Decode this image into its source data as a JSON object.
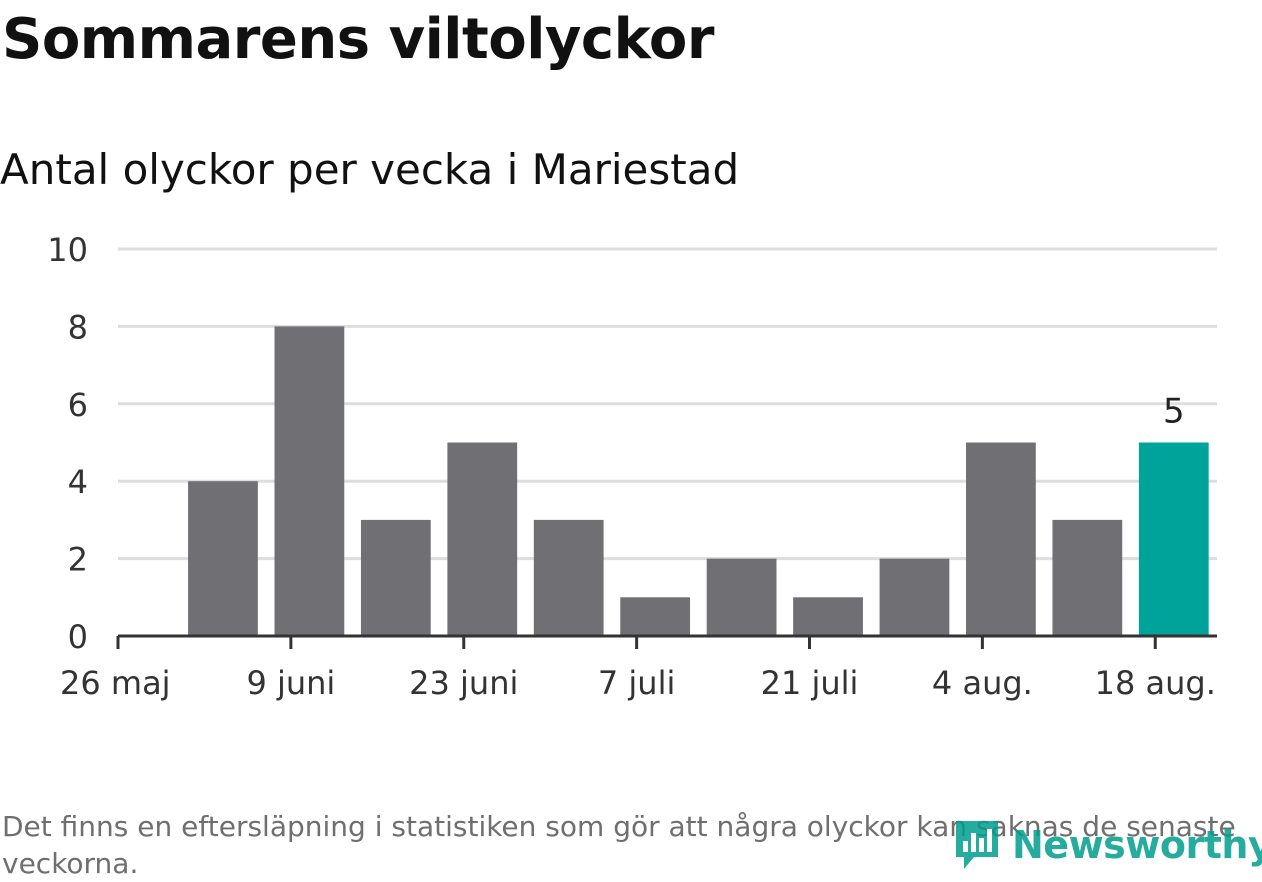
{
  "header": {
    "title": "Sommarens viltolyckor",
    "subtitle": "Antal olyckor per vecka i Mariestad"
  },
  "footer": {
    "note": "Det finns en eftersläpning i statistiken som gör att några olyckor kan saknas de senaste veckorna.",
    "brand": "Newsworthy"
  },
  "colors": {
    "bar": "#706f74",
    "highlight": "#00a39a",
    "grid": "#dddddd",
    "axis": "#333333",
    "text": "#333333",
    "brand": "#009e8e"
  },
  "chart_data": {
    "type": "bar",
    "x_axis": "date",
    "week_starts": [
      "2019-06-03",
      "2019-06-10",
      "2019-06-17",
      "2019-06-24",
      "2019-07-01",
      "2019-07-08",
      "2019-07-15",
      "2019-07-22",
      "2019-07-29",
      "2019-08-05",
      "2019-08-12",
      "2019-08-19"
    ],
    "values": [
      4,
      8,
      3,
      5,
      3,
      1,
      2,
      1,
      2,
      5,
      3,
      5
    ],
    "highlight_index": 11,
    "data_labels": [
      {
        "index": 11,
        "text": "5"
      }
    ],
    "xticks": [
      {
        "date": "2019-05-26",
        "label": "26 maj"
      },
      {
        "date": "2019-06-09",
        "label": "9 juni"
      },
      {
        "date": "2019-06-23",
        "label": "23 juni"
      },
      {
        "date": "2019-07-07",
        "label": "7 juli"
      },
      {
        "date": "2019-07-21",
        "label": "21 juli"
      },
      {
        "date": "2019-08-04",
        "label": "4 aug."
      },
      {
        "date": "2019-08-18",
        "label": "18 aug."
      }
    ],
    "yticks": [
      0,
      2,
      4,
      6,
      8,
      10
    ],
    "ylim": [
      0,
      10
    ],
    "xlim": [
      "2019-05-26",
      "2019-08-23"
    ],
    "grid": true,
    "legend": "none"
  }
}
